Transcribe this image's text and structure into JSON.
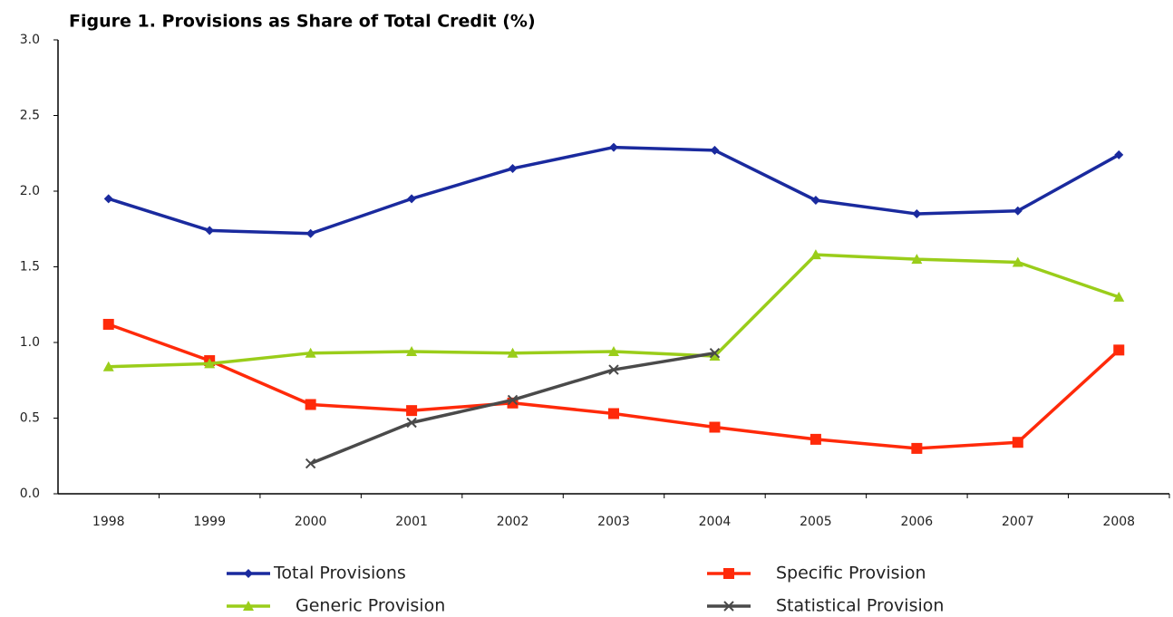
{
  "chart_data": {
    "type": "line",
    "title": "Figure 1.  Provisions as Share of Total Credit (%)",
    "categories": [
      "1998",
      "1999",
      "2000",
      "2001",
      "2002",
      "2003",
      "2004",
      "2005",
      "2006",
      "2007",
      "2008"
    ],
    "series": [
      {
        "name": "Total Provisions",
        "color": "#1a2a9e",
        "marker": "diamond",
        "values": [
          1.95,
          1.74,
          1.72,
          1.95,
          2.15,
          2.29,
          2.27,
          1.94,
          1.85,
          1.87,
          2.24
        ]
      },
      {
        "name": "Specific Provision",
        "color": "#ff2a0a",
        "marker": "square",
        "values": [
          1.12,
          0.88,
          0.59,
          0.55,
          0.6,
          0.53,
          0.44,
          0.36,
          0.3,
          0.34,
          0.95
        ]
      },
      {
        "name": "Generic Provision",
        "color": "#9acd1a",
        "marker": "triangle",
        "values": [
          0.84,
          0.86,
          0.93,
          0.94,
          0.93,
          0.94,
          0.91,
          1.58,
          1.55,
          1.53,
          1.3
        ]
      },
      {
        "name": "Statistical Provision",
        "color": "#4a4a4a",
        "marker": "cross",
        "values": [
          null,
          null,
          0.2,
          0.47,
          0.62,
          0.82,
          0.93,
          null,
          null,
          null,
          null
        ]
      }
    ],
    "ylim": [
      0,
      3
    ],
    "yticks": [
      {
        "value": 0,
        "label": "0.0"
      },
      0.5,
      {
        "value": 1,
        "label": "1.0"
      },
      1.5,
      {
        "value": 2,
        "label": "2.0"
      },
      2.5,
      {
        "value": 3,
        "label": "3.0"
      }
    ],
    "grid": false,
    "legend": "bottom"
  }
}
